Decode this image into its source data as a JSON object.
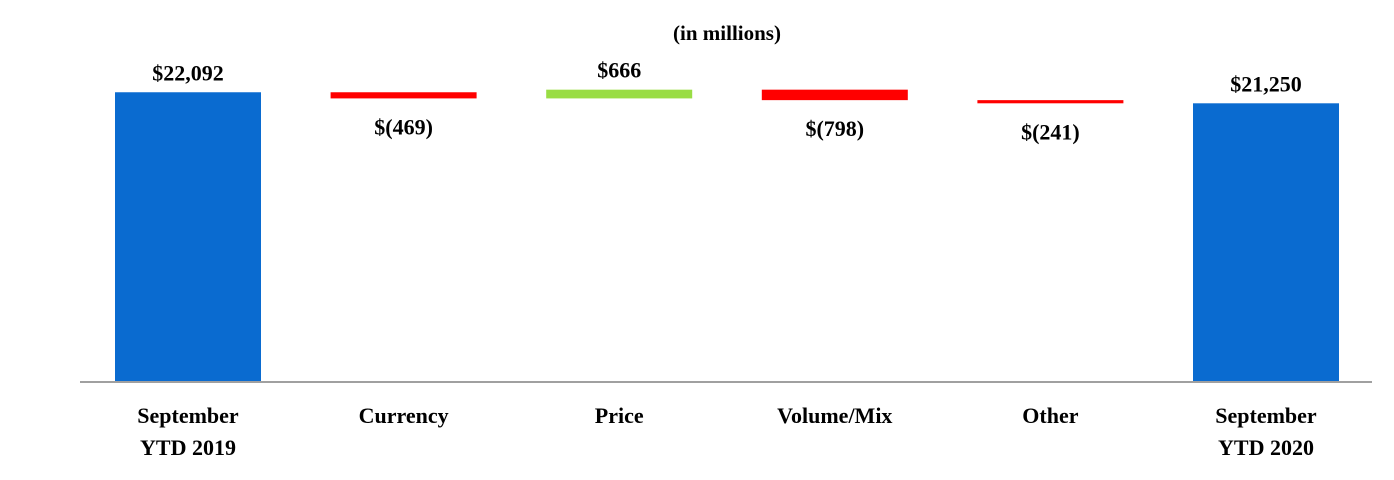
{
  "chart_data": {
    "type": "bar",
    "subtype": "waterfall",
    "title": "(in millions)",
    "categories": [
      "September YTD 2019",
      "Currency",
      "Price",
      "Volume/Mix",
      "Other",
      "September YTD 2020"
    ],
    "category_lines": [
      [
        "September",
        "YTD 2019"
      ],
      [
        "Currency"
      ],
      [
        "Price"
      ],
      [
        "Volume/Mix"
      ],
      [
        "Other"
      ],
      [
        "September",
        "YTD 2020"
      ]
    ],
    "values": [
      22092,
      -469,
      666,
      -798,
      -241,
      21250
    ],
    "kinds": [
      "total",
      "delta",
      "delta",
      "delta",
      "delta",
      "total"
    ],
    "data_labels": [
      "$22,092",
      "$(469)",
      "$666",
      "$(798)",
      "$(241)",
      "$21,250"
    ],
    "colors": {
      "total": "#0a6bd0",
      "increase": "#99dd44",
      "decrease": "#ff0000",
      "axis": "#a0a0a0"
    }
  }
}
